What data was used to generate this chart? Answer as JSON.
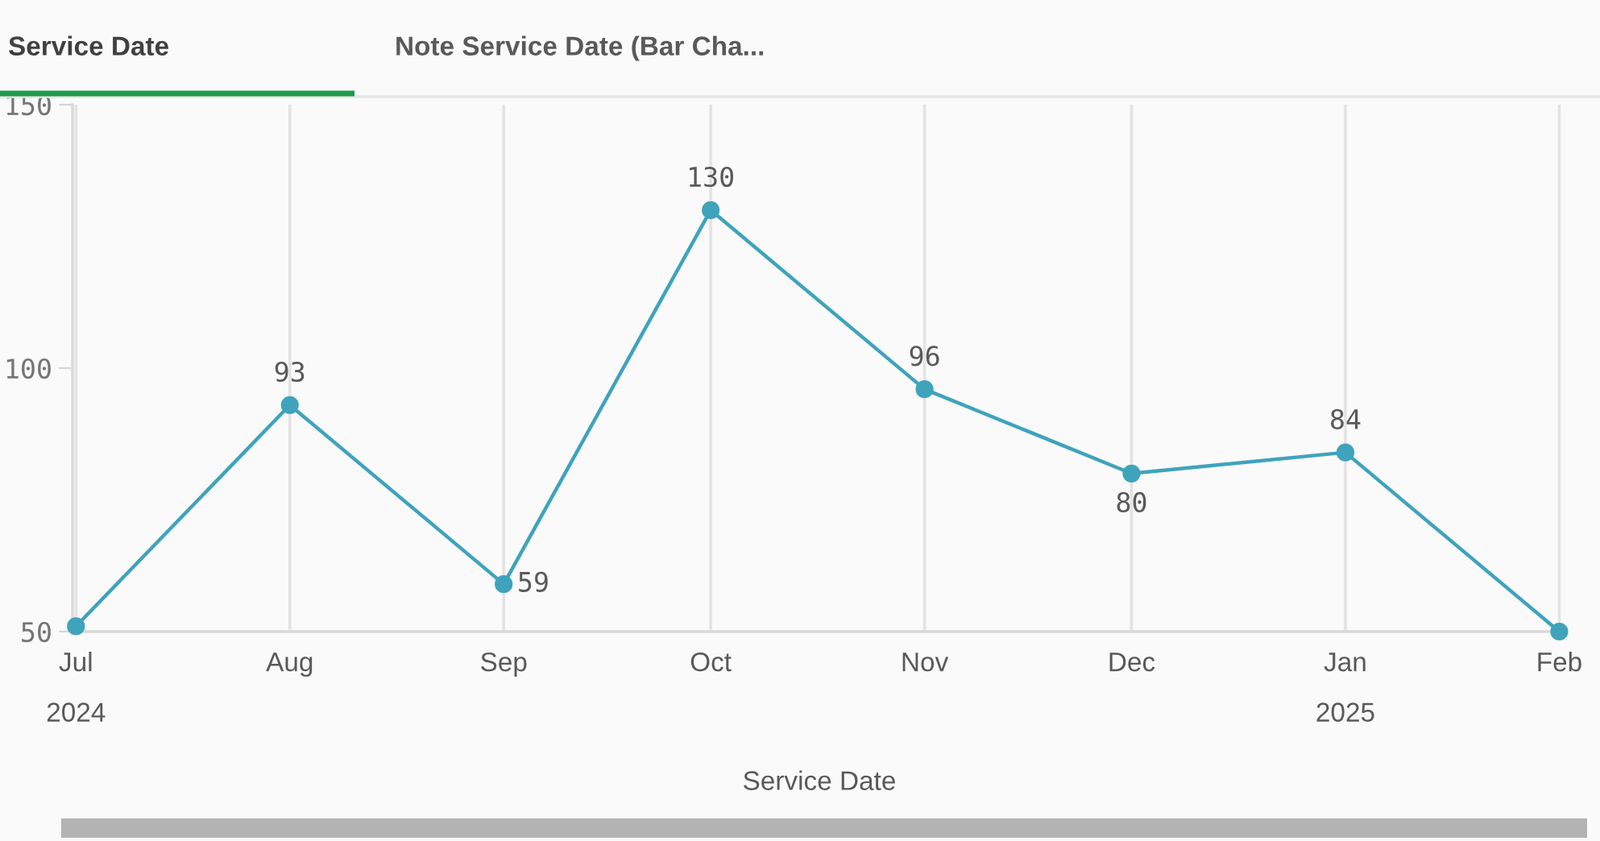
{
  "chart_data": {
    "type": "line",
    "title": "Service Date",
    "subtitle": "Note Service Date (Bar Cha...",
    "xlabel": "Service Date",
    "x": [
      "2024-07",
      "2024-08",
      "2024-09",
      "2024-10",
      "2024-11",
      "2024-12",
      "2025-01",
      "2025-02"
    ],
    "series": [
      {
        "color": "#3fa3bc",
        "values": [
          51,
          93,
          59,
          130,
          96,
          80,
          84,
          50
        ],
        "value_labels": [
          null,
          "93",
          "59",
          "130",
          "96",
          "80",
          "84",
          null
        ]
      }
    ],
    "xlim": [
      "2024-06-30T12:00",
      "2025-02-02"
    ],
    "xticks": [
      {
        "value": "2024-07",
        "label": "Jul\n2024"
      },
      {
        "value": "2024-08",
        "label": "Aug"
      },
      {
        "value": "2024-09",
        "label": "Sep"
      },
      {
        "value": "2024-10",
        "label": "Oct"
      },
      {
        "value": "2024-11",
        "label": "Nov"
      },
      {
        "value": "2024-12",
        "label": "Dec"
      },
      {
        "value": "2025-01",
        "label": "Jan\n2025"
      },
      {
        "value": "2025-02",
        "label": "Feb"
      }
    ],
    "ylim": [
      50,
      150
    ],
    "yticks": [
      50,
      100,
      150
    ],
    "grid": "x",
    "marker": "circle",
    "line_style": "solid"
  }
}
